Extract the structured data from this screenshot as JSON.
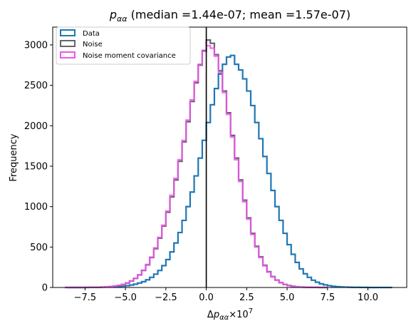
{
  "chart_data": {
    "type": "histogram",
    "title": "p_{αα} (median =1.44e-07; mean =1.57e-07)",
    "title_parts": {
      "symbol": "p",
      "subscript": "αα",
      "text": " (median =1.44e-07; mean =1.57e-07)"
    },
    "xlabel": "Δp_{αα}×10^7",
    "xlabel_parts": {
      "prefix": "Δ",
      "symbol": "p",
      "subscript": "αα",
      "times": "×10",
      "exponent": "7"
    },
    "ylabel": "Frequency",
    "xlim": [
      -9.5,
      12.4
    ],
    "ylim": [
      0,
      3220
    ],
    "xticks": [
      -7.5,
      -5.0,
      -2.5,
      0.0,
      2.5,
      5.0,
      7.5,
      10.0
    ],
    "xtick_labels": [
      "−7.5",
      "−5.0",
      "−2.5",
      "0.0",
      "2.5",
      "5.0",
      "7.5",
      "10.0"
    ],
    "yticks": [
      0,
      500,
      1000,
      1500,
      2000,
      2500,
      3000
    ],
    "ytick_labels": [
      "0",
      "500",
      "1000",
      "1500",
      "2000",
      "2500",
      "3000"
    ],
    "vline_x": 0.0,
    "vline_color": "#000000",
    "legend_position": "top-left",
    "series": [
      {
        "name": "Data",
        "color": "#1f77b4",
        "bins": [
          -8.5,
          -8.25,
          -8.0,
          -7.75,
          -7.5,
          -7.25,
          -7.0,
          -6.75,
          -6.5,
          -6.25,
          -6.0,
          -5.75,
          -5.5,
          -5.25,
          -5.0,
          -4.75,
          -4.5,
          -4.25,
          -4.0,
          -3.75,
          -3.5,
          -3.25,
          -3.0,
          -2.75,
          -2.5,
          -2.25,
          -2.0,
          -1.75,
          -1.5,
          -1.25,
          -1.0,
          -0.75,
          -0.5,
          -0.25,
          0.0,
          0.25,
          0.5,
          0.75,
          1.0,
          1.25,
          1.5,
          1.75,
          2.0,
          2.25,
          2.5,
          2.75,
          3.0,
          3.25,
          3.5,
          3.75,
          4.0,
          4.25,
          4.5,
          4.75,
          5.0,
          5.25,
          5.5,
          5.75,
          6.0,
          6.25,
          6.5,
          6.75,
          7.0,
          7.25,
          7.5,
          7.75,
          8.0,
          8.25,
          8.5,
          8.75,
          9.0,
          9.25,
          9.5,
          9.75,
          10.0,
          10.25,
          10.5,
          10.75,
          11.0,
          11.25,
          11.5
        ],
        "counts": [
          0,
          0,
          0,
          0,
          0,
          1,
          2,
          3,
          4,
          5,
          7,
          9,
          12,
          16,
          22,
          30,
          41,
          55,
          72,
          95,
          125,
          165,
          210,
          270,
          345,
          440,
          550,
          680,
          830,
          1000,
          1180,
          1380,
          1600,
          1820,
          2040,
          2260,
          2460,
          2640,
          2760,
          2850,
          2870,
          2760,
          2690,
          2580,
          2430,
          2250,
          2040,
          1840,
          1620,
          1410,
          1200,
          1000,
          830,
          670,
          530,
          410,
          310,
          230,
          170,
          125,
          90,
          65,
          45,
          32,
          22,
          15,
          10,
          7,
          5,
          3,
          2,
          2,
          1,
          1,
          0,
          0,
          0,
          0,
          0,
          0
        ]
      },
      {
        "name": "Noise",
        "color": "#666666",
        "bins": [
          -8.75,
          -8.5,
          -8.25,
          -8.0,
          -7.75,
          -7.5,
          -7.25,
          -7.0,
          -6.75,
          -6.5,
          -6.25,
          -6.0,
          -5.75,
          -5.5,
          -5.25,
          -5.0,
          -4.75,
          -4.5,
          -4.25,
          -4.0,
          -3.75,
          -3.5,
          -3.25,
          -3.0,
          -2.75,
          -2.5,
          -2.25,
          -2.0,
          -1.75,
          -1.5,
          -1.25,
          -1.0,
          -0.75,
          -0.5,
          -0.25,
          0.0,
          0.25,
          0.5,
          0.75,
          1.0,
          1.25,
          1.5,
          1.75,
          2.0,
          2.25,
          2.5,
          2.75,
          3.0,
          3.25,
          3.5,
          3.75,
          4.0,
          4.25,
          4.5,
          4.75,
          5.0,
          5.25,
          5.5,
          5.75,
          6.0,
          6.25,
          6.5,
          6.75,
          7.0,
          7.25,
          7.5
        ],
        "counts": [
          0,
          0,
          0,
          0,
          0,
          1,
          1,
          2,
          3,
          5,
          8,
          12,
          18,
          26,
          38,
          55,
          80,
          112,
          155,
          210,
          280,
          370,
          480,
          610,
          760,
          930,
          1120,
          1330,
          1560,
          1800,
          2050,
          2300,
          2530,
          2750,
          2930,
          3060,
          3020,
          2880,
          2680,
          2430,
          2160,
          1880,
          1600,
          1330,
          1080,
          860,
          670,
          510,
          380,
          275,
          195,
          135,
          92,
          60,
          38,
          24,
          15,
          9,
          5,
          3,
          2,
          1,
          1,
          0,
          0,
          0
        ]
      },
      {
        "name": "Noise moment covariance",
        "color": "#ee55ee",
        "bins": [
          -8.75,
          -8.5,
          -8.25,
          -8.0,
          -7.75,
          -7.5,
          -7.25,
          -7.0,
          -6.75,
          -6.5,
          -6.25,
          -6.0,
          -5.75,
          -5.5,
          -5.25,
          -5.0,
          -4.75,
          -4.5,
          -4.25,
          -4.0,
          -3.75,
          -3.5,
          -3.25,
          -3.0,
          -2.75,
          -2.5,
          -2.25,
          -2.0,
          -1.75,
          -1.5,
          -1.25,
          -1.0,
          -0.75,
          -0.5,
          -0.25,
          0.0,
          0.25,
          0.5,
          0.75,
          1.0,
          1.25,
          1.5,
          1.75,
          2.0,
          2.25,
          2.5,
          2.75,
          3.0,
          3.25,
          3.5,
          3.75,
          4.0,
          4.25,
          4.5,
          4.75,
          5.0,
          5.25,
          5.5,
          5.75,
          6.0,
          6.25,
          6.5,
          6.75,
          7.0,
          7.25,
          7.5
        ],
        "counts": [
          0,
          0,
          0,
          0,
          0,
          1,
          1,
          2,
          3,
          5,
          8,
          12,
          18,
          27,
          39,
          56,
          82,
          114,
          158,
          214,
          285,
          375,
          490,
          620,
          770,
          945,
          1140,
          1350,
          1580,
          1820,
          2070,
          2320,
          2550,
          2760,
          2920,
          2990,
          2960,
          2860,
          2660,
          2410,
          2140,
          1860,
          1580,
          1310,
          1060,
          845,
          655,
          500,
          370,
          268,
          190,
          131,
          90,
          58,
          37,
          23,
          14,
          8,
          5,
          3,
          2,
          1,
          1,
          0,
          0,
          0
        ]
      }
    ]
  }
}
